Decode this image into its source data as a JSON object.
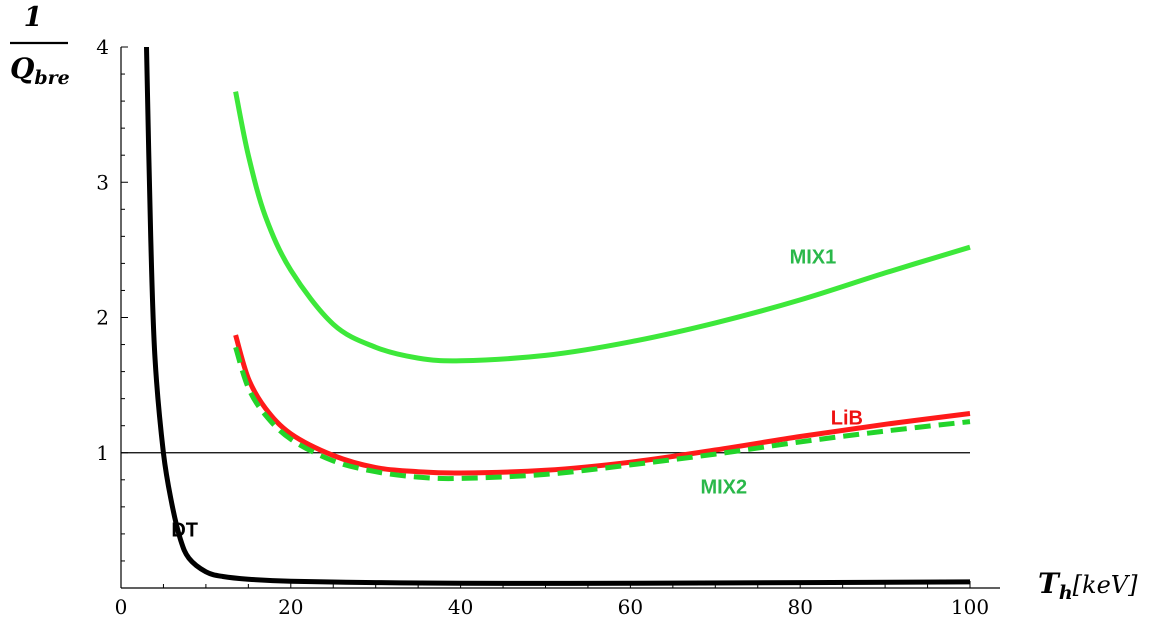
{
  "chart_data": {
    "type": "line",
    "title": "",
    "ylabel": {
      "numerator": "1",
      "symbol": "Q",
      "subscript": "bre"
    },
    "xlabel": {
      "symbol": "T",
      "subscript": "h",
      "unit": "[keV]"
    },
    "xlim": [
      0,
      100
    ],
    "ylim": [
      0,
      4
    ],
    "xticks": [
      0,
      20,
      40,
      60,
      80,
      100
    ],
    "yticks": [
      1,
      2,
      3,
      4
    ],
    "reference_line": {
      "y": 1,
      "color": "#000000"
    },
    "grid": false,
    "series": [
      {
        "name": "DT",
        "color": "#000000",
        "style": "solid",
        "points": [
          [
            3,
            4.0
          ],
          [
            3.5,
            2.6
          ],
          [
            4,
            1.7
          ],
          [
            5,
            1.0
          ],
          [
            6,
            0.62
          ],
          [
            7,
            0.36
          ],
          [
            8,
            0.22
          ],
          [
            10,
            0.12
          ],
          [
            12,
            0.085
          ],
          [
            15,
            0.065
          ],
          [
            20,
            0.05
          ],
          [
            30,
            0.04
          ],
          [
            40,
            0.035
          ],
          [
            60,
            0.035
          ],
          [
            80,
            0.04
          ],
          [
            100,
            0.045
          ]
        ]
      },
      {
        "name": "MIX1",
        "color": "#3de83a",
        "style": "solid",
        "points": [
          [
            13.5,
            3.67
          ],
          [
            15,
            3.2
          ],
          [
            17,
            2.75
          ],
          [
            20,
            2.35
          ],
          [
            25,
            1.95
          ],
          [
            30,
            1.78
          ],
          [
            35,
            1.7
          ],
          [
            40,
            1.68
          ],
          [
            50,
            1.72
          ],
          [
            60,
            1.82
          ],
          [
            70,
            1.96
          ],
          [
            80,
            2.13
          ],
          [
            90,
            2.33
          ],
          [
            100,
            2.52
          ]
        ]
      },
      {
        "name": "LiB",
        "color": "#ff1a1a",
        "style": "solid",
        "points": [
          [
            13.5,
            1.87
          ],
          [
            15,
            1.55
          ],
          [
            17,
            1.33
          ],
          [
            20,
            1.14
          ],
          [
            25,
            0.98
          ],
          [
            30,
            0.89
          ],
          [
            35,
            0.86
          ],
          [
            40,
            0.85
          ],
          [
            50,
            0.87
          ],
          [
            60,
            0.93
          ],
          [
            70,
            1.02
          ],
          [
            80,
            1.12
          ],
          [
            90,
            1.21
          ],
          [
            100,
            1.29
          ]
        ]
      },
      {
        "name": "MIX2",
        "color": "#22d42a",
        "style": "dashed",
        "points": [
          [
            13.5,
            1.78
          ],
          [
            15,
            1.48
          ],
          [
            17,
            1.28
          ],
          [
            20,
            1.1
          ],
          [
            25,
            0.94
          ],
          [
            30,
            0.86
          ],
          [
            35,
            0.82
          ],
          [
            40,
            0.81
          ],
          [
            50,
            0.84
          ],
          [
            60,
            0.91
          ],
          [
            70,
            0.99
          ],
          [
            80,
            1.08
          ],
          [
            90,
            1.16
          ],
          [
            100,
            1.23
          ]
        ]
      }
    ],
    "annotations": [
      {
        "text": "DT",
        "x": 7.5,
        "y": 0.38,
        "color": "#000000"
      },
      {
        "text": "MIX1",
        "x": 81.5,
        "y": 2.4,
        "color": "#2ab84a"
      },
      {
        "text": "LiB",
        "x": 85.5,
        "y": 1.21,
        "color": "#ee1111"
      },
      {
        "text": "MIX2",
        "x": 71,
        "y": 0.7,
        "color": "#2ab84a"
      }
    ]
  }
}
